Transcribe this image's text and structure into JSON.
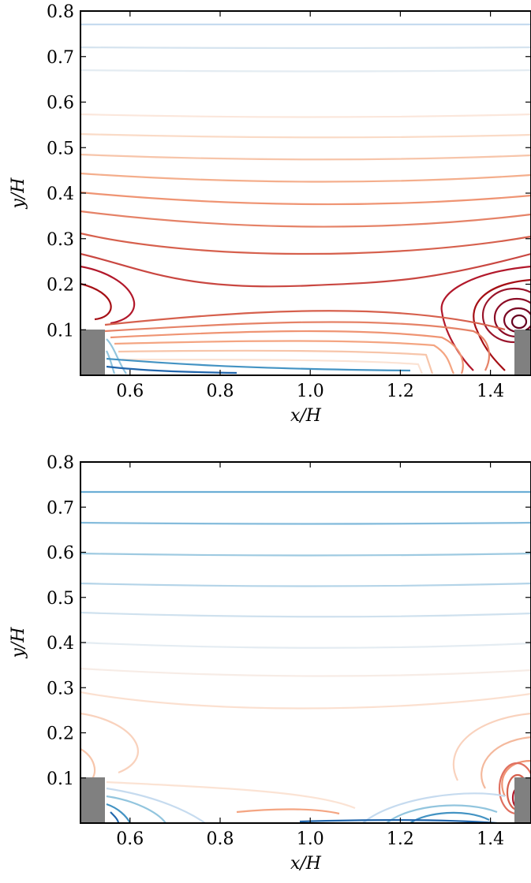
{
  "charts": [
    {
      "type": "contour",
      "xlabel": "x/H",
      "ylabel": "y/H",
      "xlim": [
        0.49,
        1.49
      ],
      "ylim": [
        0,
        0.8
      ],
      "xticks": [
        0.6,
        0.8,
        {
          "value": 1,
          "label": "1.0"
        },
        1.2,
        1.4
      ],
      "yticks": [
        0.1,
        0.2,
        0.3,
        0.4,
        0.5,
        0.6,
        0.7,
        0.8
      ]
    },
    {
      "type": "contour",
      "xlabel": "x/H",
      "ylabel": "y/H",
      "xlim": [
        0.49,
        1.49
      ],
      "ylim": [
        0,
        0.8
      ],
      "xticks": [
        0.6,
        0.8,
        {
          "value": 1,
          "label": "1.0"
        },
        1.2,
        1.4
      ],
      "yticks": [
        0.1,
        0.2,
        0.3,
        0.4,
        0.5,
        0.6,
        0.7,
        0.8
      ]
    }
  ]
}
